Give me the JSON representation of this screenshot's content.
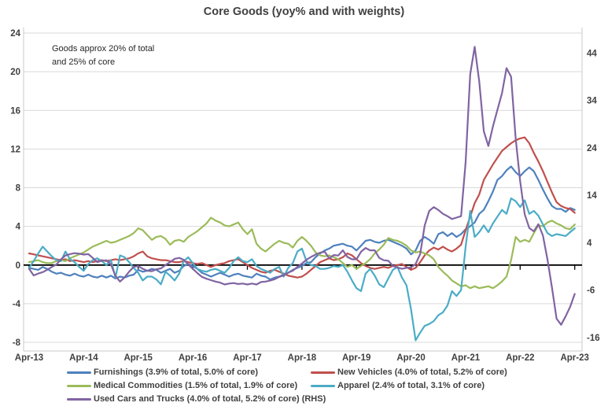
{
  "title": "Core Goods (yoy% and with weights)",
  "annotation": {
    "line1": "Goods approx 20% of total",
    "line2": "and 25% of core"
  },
  "colors": {
    "furnishings": "#4F81BD",
    "new_vehicles": "#C0504D",
    "medical": "#9BBB59",
    "apparel": "#4BACC6",
    "used_cars": "#8064A2",
    "grid": "#D9D9D9",
    "spine": "#C9C9C9",
    "zero_line": "#000000",
    "axis_text": "#404040"
  },
  "chart_data": {
    "type": "line",
    "title": "Core Goods (yoy% and with weights)",
    "x_start": "Apr-13",
    "x_end": "Apr-23",
    "x_frequency": "monthly",
    "x_tick_labels": [
      "Apr-13",
      "Apr-14",
      "Apr-15",
      "Apr-16",
      "Apr-17",
      "Apr-18",
      "Apr-19",
      "Apr-20",
      "Apr-21",
      "Apr-22",
      "Apr-23"
    ],
    "months_per_tick": 12,
    "grid": true,
    "left_axis": {
      "ticks": [
        24,
        20,
        16,
        12,
        8,
        4,
        0,
        -4,
        -8
      ],
      "min": -8,
      "max": 24
    },
    "right_axis": {
      "ticks": [
        44,
        34,
        24,
        14,
        4,
        -6,
        -16
      ],
      "min": -17,
      "max": 48.2
    },
    "legend": {
      "columns": [
        [
          0,
          2,
          4
        ],
        [
          1,
          3
        ]
      ],
      "position": "bottom"
    },
    "series": [
      {
        "name": "Furnishings (3.9% of total, 5.0% of core)",
        "color_key": "furnishings",
        "axis": "left",
        "values": [
          -0.3,
          -0.4,
          -0.5,
          -0.2,
          -0.4,
          -0.7,
          -0.9,
          -0.8,
          -1.0,
          -1.1,
          -0.9,
          -1.1,
          -1.2,
          -1.0,
          -1.2,
          -1.3,
          -1.1,
          -1.3,
          -1.1,
          -1.4,
          -1.2,
          -1.3,
          -1.1,
          -1.0,
          -0.5,
          -0.7,
          -0.6,
          -0.4,
          -0.5,
          -0.8,
          -0.6,
          -0.4,
          -0.8,
          -0.6,
          -0.1,
          0.1,
          -0.1,
          -0.4,
          -0.8,
          -1.0,
          -1.2,
          -1.0,
          -0.8,
          -1.0,
          -1.2,
          -1.0,
          -0.9,
          -1.1,
          -1.2,
          -1.3,
          -0.9,
          -1.1,
          -1.2,
          -1.5,
          -1.3,
          -1.2,
          -1.0,
          -0.8,
          -0.5,
          -0.3,
          -0.1,
          0.2,
          0.3,
          0.8,
          1.2,
          1.5,
          1.7,
          2.0,
          2.1,
          2.2,
          2.0,
          1.9,
          1.5,
          2.0,
          2.5,
          2.6,
          2.4,
          2.3,
          2.5,
          2.6,
          2.4,
          2.2,
          2.0,
          1.7,
          1.1,
          1.5,
          2.5,
          2.9,
          2.6,
          2.2,
          3.2,
          3.4,
          3.0,
          3.3,
          2.9,
          3.2,
          3.7,
          4.0,
          4.4,
          5.3,
          5.7,
          6.6,
          7.6,
          8.8,
          9.2,
          9.8,
          10.2,
          9.6,
          9.2,
          9.7,
          10.1,
          9.7,
          8.8,
          7.8,
          6.9,
          6.1,
          5.8,
          5.8,
          5.5,
          5.9,
          5.7
        ]
      },
      {
        "name": "New Vehicles (4.0% of total, 5.2% of core)",
        "color_key": "new_vehicles",
        "axis": "left",
        "values": [
          1.2,
          1.1,
          1.0,
          0.9,
          0.8,
          0.7,
          0.6,
          0.5,
          0.6,
          0.4,
          0.5,
          0.4,
          0.3,
          0.4,
          0.3,
          0.4,
          0.5,
          0.4,
          0.5,
          0.6,
          0.5,
          0.6,
          0.7,
          0.9,
          1.2,
          1.4,
          0.9,
          0.7,
          0.6,
          0.5,
          0.5,
          0.4,
          0.3,
          0.3,
          0.4,
          0.3,
          0.2,
          0.1,
          0.2,
          0.0,
          -0.2,
          0.0,
          0.1,
          0.2,
          0.4,
          0.5,
          0.6,
          0.3,
          0.0,
          -0.3,
          -0.5,
          -0.7,
          -0.8,
          -0.6,
          -0.5,
          -0.7,
          -0.9,
          -1.1,
          -1.2,
          -1.3,
          -1.2,
          -0.9,
          -0.5,
          -0.1,
          0.3,
          0.5,
          0.7,
          0.5,
          0.6,
          0.8,
          1.2,
          1.0,
          0.6,
          0.2,
          -0.1,
          -0.3,
          -0.4,
          -0.3,
          -0.2,
          -0.3,
          -0.1,
          0.0,
          0.1,
          -0.2,
          -0.5,
          -0.3,
          0.3,
          1.0,
          1.5,
          1.8,
          1.6,
          1.9,
          1.6,
          1.4,
          1.7,
          2.1,
          3.6,
          5.0,
          6.4,
          7.3,
          8.8,
          9.6,
          10.4,
          11.1,
          11.8,
          12.2,
          12.6,
          12.9,
          13.1,
          13.2,
          12.6,
          11.6,
          10.7,
          9.7,
          8.6,
          7.5,
          6.5,
          6.1,
          5.9,
          5.8,
          5.4
        ]
      },
      {
        "name": "Medical Commodities (1.5% of total, 1.9% of core)",
        "color_key": "medical",
        "axis": "left",
        "values": [
          0.3,
          0.4,
          0.5,
          0.3,
          0.2,
          0.2,
          0.4,
          0.5,
          0.4,
          0.7,
          0.9,
          1.1,
          1.3,
          1.6,
          1.9,
          2.1,
          2.3,
          2.5,
          2.3,
          2.4,
          2.6,
          2.8,
          3.0,
          3.3,
          3.8,
          3.6,
          3.1,
          2.6,
          2.9,
          3.0,
          2.7,
          2.1,
          2.5,
          2.6,
          2.4,
          2.9,
          3.2,
          3.5,
          3.9,
          4.3,
          4.9,
          4.6,
          4.4,
          4.1,
          4.0,
          4.2,
          4.4,
          3.7,
          3.2,
          3.7,
          2.2,
          1.7,
          1.4,
          1.8,
          2.2,
          2.5,
          2.3,
          2.2,
          1.8,
          2.5,
          2.9,
          2.5,
          2.0,
          1.3,
          1.0,
          0.9,
          1.0,
          0.8,
          0.6,
          0.2,
          -0.2,
          0.0,
          -0.4,
          -0.1,
          0.2,
          0.6,
          1.2,
          1.6,
          2.1,
          2.8,
          2.6,
          2.5,
          2.3,
          2.0,
          1.5,
          1.3,
          1.4,
          1.2,
          1.0,
          0.6,
          -0.2,
          -0.7,
          -1.1,
          -1.6,
          -1.9,
          -2.2,
          -2.1,
          -2.4,
          -2.2,
          -2.4,
          -2.3,
          -2.2,
          -2.4,
          -2.1,
          -1.7,
          -1.2,
          0.5,
          2.9,
          2.4,
          2.6,
          2.4,
          3.3,
          4.1,
          4.0,
          4.4,
          4.6,
          4.3,
          4.1,
          3.8,
          3.7,
          4.2
        ]
      },
      {
        "name": "Apparel (2.4% of total, 3.1% of core)",
        "color_key": "apparel",
        "axis": "left",
        "values": [
          -0.3,
          0.4,
          1.2,
          1.9,
          1.4,
          0.9,
          0.5,
          0.4,
          1.4,
          0.6,
          0.3,
          -0.2,
          -0.6,
          0.1,
          0.5,
          0.7,
          0.4,
          0.0,
          0.5,
          -1.3,
          1.0,
          0.8,
          0.3,
          -0.3,
          -0.8,
          -1.6,
          -1.2,
          -1.2,
          -1.5,
          -2.0,
          -0.7,
          -1.1,
          -1.6,
          -0.9,
          0.4,
          0.8,
          0.2,
          -0.4,
          -0.6,
          -0.7,
          -0.5,
          -0.4,
          -0.6,
          -0.8,
          -0.3,
          0.4,
          0.8,
          0.4,
          0.3,
          0.6,
          -0.1,
          -0.4,
          -0.6,
          -0.8,
          -0.4,
          -0.2,
          -1.2,
          -0.3,
          0.2,
          1.4,
          1.7,
          0.4,
          0.0,
          -0.1,
          -0.4,
          -0.4,
          -0.3,
          -0.1,
          -0.2,
          0.0,
          -0.7,
          -1.6,
          -2.4,
          -2.7,
          -0.9,
          -0.4,
          -1.1,
          -2.0,
          -2.3,
          -1.4,
          -0.5,
          -0.2,
          -1.3,
          -2.1,
          -4.6,
          -7.8,
          -7.0,
          -6.3,
          -6.1,
          -5.8,
          -5.2,
          -4.9,
          -4.2,
          -2.7,
          -3.2,
          -2.6,
          1.9,
          5.6,
          2.9,
          3.4,
          4.1,
          3.4,
          4.3,
          5.0,
          5.7,
          5.3,
          6.9,
          6.6,
          6.0,
          6.7,
          5.3,
          5.6,
          5.1,
          4.2,
          3.3,
          3.0,
          3.2,
          3.1,
          3.0,
          3.4,
          3.8
        ]
      },
      {
        "name": "Used Cars and Trucks (4.0% of total, 5.2% of core) (RHS)",
        "color_key": "used_cars",
        "axis": "right",
        "values": [
          -1.5,
          -2.9,
          -2.5,
          -2.2,
          -1.7,
          -1.1,
          -0.6,
          0.5,
          1.3,
          1.6,
          1.8,
          1.7,
          1.5,
          1.6,
          0.8,
          -0.1,
          0.2,
          0.3,
          -0.6,
          -3.0,
          -4.2,
          -3.3,
          -2.1,
          -1.1,
          -0.9,
          -1.5,
          -1.9,
          -2.0,
          -1.6,
          -1.4,
          -0.7,
          -0.1,
          0.6,
          0.8,
          0.4,
          -0.6,
          -1.5,
          -2.4,
          -3.2,
          -3.6,
          -3.9,
          -4.2,
          -4.4,
          -4.8,
          -4.6,
          -4.5,
          -4.7,
          -4.6,
          -4.8,
          -4.6,
          -4.8,
          -4.3,
          -4.2,
          -4.0,
          -3.7,
          -3.2,
          -2.9,
          -2.3,
          -1.9,
          -1.1,
          -0.4,
          0.4,
          1.0,
          1.5,
          1.9,
          2.1,
          0.7,
          1.4,
          1.3,
          2.4,
          1.0,
          0.5,
          0.5,
          2.1,
          2.9,
          2.4,
          2.4,
          0.8,
          0.3,
          0.2,
          -0.9,
          -1.2,
          -1.5,
          -1.3,
          -1.2,
          -0.5,
          1.6,
          7.6,
          10.7,
          11.5,
          10.9,
          10.1,
          9.6,
          9.0,
          9.3,
          9.6,
          21.0,
          39.5,
          45.3,
          38.0,
          27.5,
          24.4,
          28.5,
          32.0,
          35.5,
          40.8,
          39.0,
          26.0,
          17.0,
          10.0,
          7.1,
          6.4,
          7.9,
          5.5,
          0.5,
          -5.5,
          -12.0,
          -13.3,
          -11.5,
          -9.5,
          -6.8
        ]
      }
    ]
  }
}
